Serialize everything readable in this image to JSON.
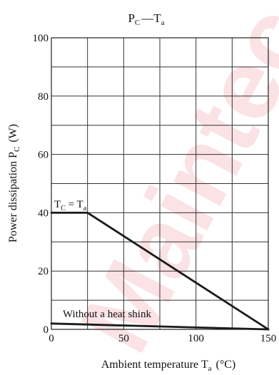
{
  "chart_data": {
    "type": "line",
    "title_main": "P",
    "title_main_sub": "C",
    "title_sep": "—",
    "title_second": "T",
    "title_second_sub": "a",
    "ylabel_main": "Power dissipation  P",
    "ylabel_sub": "C",
    "ylabel_unit": "(W)",
    "xlabel_main": "Ambient temperature  T",
    "xlabel_sub": "a",
    "xlabel_unit": "(°C)",
    "xlim": [
      0,
      150
    ],
    "ylim": [
      0,
      100
    ],
    "xticks": [
      0,
      50,
      100,
      150
    ],
    "yticks": [
      0,
      20,
      40,
      60,
      80,
      100
    ],
    "grid": true,
    "grid_x_step": 25,
    "grid_y_step": 10,
    "series": [
      {
        "x": [
          0,
          25,
          150
        ],
        "y": [
          40,
          40,
          0
        ]
      },
      {
        "x": [
          0,
          150
        ],
        "y": [
          2,
          0
        ]
      }
    ],
    "annotations": {
      "tc_main": "T",
      "tc_sub": "C",
      "tc_eq": " = T",
      "tc_sub2": "a",
      "no_heatsink": "Without a heat shink"
    },
    "watermark": "Maintec"
  }
}
